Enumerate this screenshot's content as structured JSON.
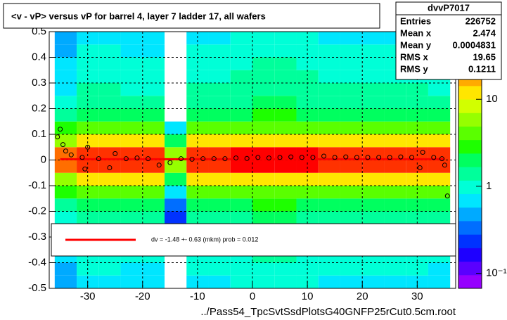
{
  "chart_data": {
    "type": "heatmap",
    "title": "<v - vP>       versus   vP for barrel 4, layer 7 ladder 17, all wafers",
    "xlabel": "../Pass54_TpcSvtSsdPlotsG40GNFP25rCut0.5cm.root",
    "xlim": [
      -37,
      37
    ],
    "ylim": [
      -0.5,
      0.5
    ],
    "xticks": [
      -30,
      -20,
      -10,
      0,
      10,
      20,
      30
    ],
    "yticks": [
      -0.5,
      -0.4,
      -0.3,
      -0.2,
      -0.1,
      0,
      0.1,
      0.2,
      0.3,
      0.4,
      0.5
    ],
    "grid": true,
    "zlog": true,
    "zlim": [
      0.067,
      60
    ],
    "zticks": [
      {
        "value": 0.1,
        "label": "10⁻¹"
      },
      1,
      10
    ],
    "palette": [
      "#9600ff",
      "#5a00ff",
      "#1e00ff",
      "#0032ff",
      "#006eff",
      "#00aaff",
      "#00e6ff",
      "#00ffd7",
      "#00ff9b",
      "#00ff5f",
      "#1eff00",
      "#5aff00",
      "#96ff00",
      "#d2ff00",
      "#ffe600",
      "#ffaa00",
      "#ff6e00",
      "#ff3200",
      "#ff0000"
    ],
    "xbins": [
      -36,
      -32,
      -28,
      -24,
      -20,
      -16,
      -12,
      -8,
      -4,
      0,
      4,
      8,
      12,
      16,
      20,
      24,
      28,
      32,
      36
    ],
    "ybins": [
      -0.5,
      -0.45,
      -0.4,
      -0.35,
      -0.3,
      -0.25,
      -0.2,
      -0.15,
      -0.1,
      -0.05,
      0,
      0.05,
      0.1,
      0.15,
      0.2,
      0.25,
      0.3,
      0.35,
      0.4,
      0.45,
      0.5
    ],
    "z": [
      [
        0.5,
        0.8,
        0.8,
        0.7,
        0.7,
        0,
        0.8,
        0.8,
        0.9,
        1,
        1,
        0.9,
        0.8,
        0.8,
        0.8,
        0.8,
        0.8,
        0.7
      ],
      [
        0.5,
        0.9,
        0.9,
        0.8,
        0.8,
        0,
        0.9,
        0.9,
        1,
        1.1,
        1.1,
        1,
        0.9,
        0.9,
        0.9,
        0.9,
        0.9,
        0.8
      ],
      [
        0.6,
        1,
        1,
        0.9,
        0.9,
        0,
        1,
        1,
        1.1,
        1.2,
        1.2,
        1.1,
        1,
        1,
        1,
        1,
        1,
        0.9
      ],
      [
        0.7,
        1.1,
        1.1,
        1,
        1,
        0,
        1.1,
        1.1,
        1.2,
        1.3,
        1.3,
        1.2,
        1.1,
        1.1,
        1.1,
        1.1,
        1.1,
        1
      ],
      [
        0.7,
        1.2,
        1.2,
        1.1,
        1.1,
        0,
        1.2,
        1.2,
        1.3,
        1.4,
        1.4,
        1.3,
        1.2,
        1.2,
        1.2,
        1.2,
        1.2,
        1.1
      ],
      [
        0.9,
        1.5,
        1.5,
        1.4,
        1.4,
        0.2,
        1.5,
        1.5,
        1.6,
        1.8,
        1.8,
        1.6,
        1.5,
        1.5,
        1.5,
        1.5,
        1.5,
        1.4
      ],
      [
        1.2,
        2,
        2,
        1.8,
        1.8,
        0.3,
        2,
        2,
        2.2,
        2.4,
        2.4,
        2.2,
        2,
        2,
        2,
        2,
        2,
        1.8
      ],
      [
        2.4,
        4,
        4,
        3.6,
        3.6,
        0.6,
        4,
        4,
        4.4,
        4.8,
        4.8,
        4.4,
        4,
        4,
        4,
        4,
        4,
        3.6
      ],
      [
        7,
        12,
        12,
        11,
        11,
        2,
        12,
        12,
        13,
        14,
        14,
        13,
        12,
        12,
        12,
        12,
        12,
        11
      ],
      [
        24,
        40,
        40,
        36,
        36,
        6,
        40,
        40,
        44,
        48,
        48,
        44,
        40,
        40,
        40,
        40,
        40,
        36
      ],
      [
        24,
        40,
        40,
        36,
        36,
        6,
        40,
        40,
        44,
        48,
        48,
        44,
        40,
        40,
        40,
        40,
        40,
        36
      ],
      [
        7,
        12,
        12,
        11,
        11,
        2,
        12,
        12,
        13,
        14,
        14,
        13,
        12,
        12,
        12,
        12,
        12,
        11
      ],
      [
        2.4,
        4,
        4,
        3.6,
        3.6,
        0.6,
        4,
        4,
        4.4,
        4.8,
        4.8,
        4.4,
        4,
        4,
        4,
        4,
        4,
        3.6
      ],
      [
        1.2,
        2,
        2,
        1.8,
        1.8,
        0,
        2,
        2,
        2.2,
        2.4,
        2.4,
        2.2,
        2,
        2,
        2,
        2,
        2,
        1.8
      ],
      [
        0.9,
        1.5,
        1.5,
        1.4,
        1.4,
        0,
        1.5,
        1.5,
        1.6,
        1.8,
        1.8,
        1.6,
        1.5,
        1.5,
        1.5,
        1.5,
        1.5,
        1.4
      ],
      [
        0.7,
        1.2,
        1.2,
        1.1,
        1.1,
        0,
        1.2,
        1.2,
        1.3,
        1.4,
        1.4,
        1.3,
        1.2,
        1.2,
        1.2,
        1.2,
        1.2,
        1.1
      ],
      [
        0.7,
        1.1,
        1.1,
        1,
        1,
        0,
        1.1,
        1.1,
        1.2,
        1.3,
        1.3,
        1.2,
        1.1,
        1.1,
        1.1,
        1.1,
        1.1,
        1
      ],
      [
        0.6,
        1,
        1,
        0.9,
        0.9,
        0,
        1,
        1,
        1.1,
        1.2,
        1.2,
        1.1,
        1,
        1,
        1,
        1,
        1,
        0.9
      ],
      [
        0.5,
        0.9,
        0.9,
        0.8,
        0.8,
        0,
        0.9,
        0.9,
        1,
        1.1,
        1.1,
        1,
        0.9,
        0.9,
        0.9,
        0.9,
        0.9,
        0.8
      ],
      [
        0.5,
        0.8,
        0.8,
        0.7,
        0.7,
        0,
        0.8,
        0.8,
        0.9,
        1,
        1,
        0.9,
        0.8,
        0.8,
        0.8,
        0.8,
        0.8,
        0.7
      ]
    ],
    "profile": {
      "x": [
        -35.5,
        -35,
        -34.5,
        -34,
        -33,
        -31,
        -30.5,
        -30,
        -28,
        -26,
        -25,
        -23,
        -21,
        -19,
        -17,
        -15,
        -13,
        -11,
        -9,
        -7,
        -5,
        -3,
        -1,
        1,
        3,
        5,
        7,
        9,
        11,
        13,
        15,
        17,
        19,
        21,
        23,
        25,
        27,
        29,
        30.5,
        31,
        33,
        34.5,
        35,
        35.5
      ],
      "y": [
        0.09,
        0.12,
        0.06,
        0.035,
        0.02,
        0.01,
        -0.035,
        0.05,
        0.005,
        -0.03,
        0.025,
        0.005,
        0.008,
        0.005,
        -0.02,
        -0.01,
        0.005,
        0.003,
        0.005,
        0.005,
        0.005,
        0.008,
        0.006,
        0.01,
        0.008,
        0.01,
        0.012,
        0.01,
        0.01,
        0.015,
        0.01,
        0.012,
        0.01,
        0.01,
        0.01,
        0.01,
        0.012,
        0.01,
        -0.03,
        0.03,
        0.01,
        0.005,
        -0.02,
        -0.14
      ]
    },
    "fit": {
      "x": [
        -35,
        35
      ],
      "y": [
        0.003,
        0.003
      ],
      "color": "#ff0000",
      "label": "dv =   -1.48 +-  0.63 (mkm) prob = 0.012"
    },
    "stats": {
      "name": "dvvP7017",
      "rows": [
        {
          "label": "Entries",
          "value": 226752
        },
        {
          "label": "Mean x",
          "value": 2.474
        },
        {
          "label": "Mean y",
          "value": 0.0004831
        },
        {
          "label": "RMS x",
          "value": 19.65
        },
        {
          "label": "RMS y",
          "value": 0.1211
        }
      ]
    }
  }
}
